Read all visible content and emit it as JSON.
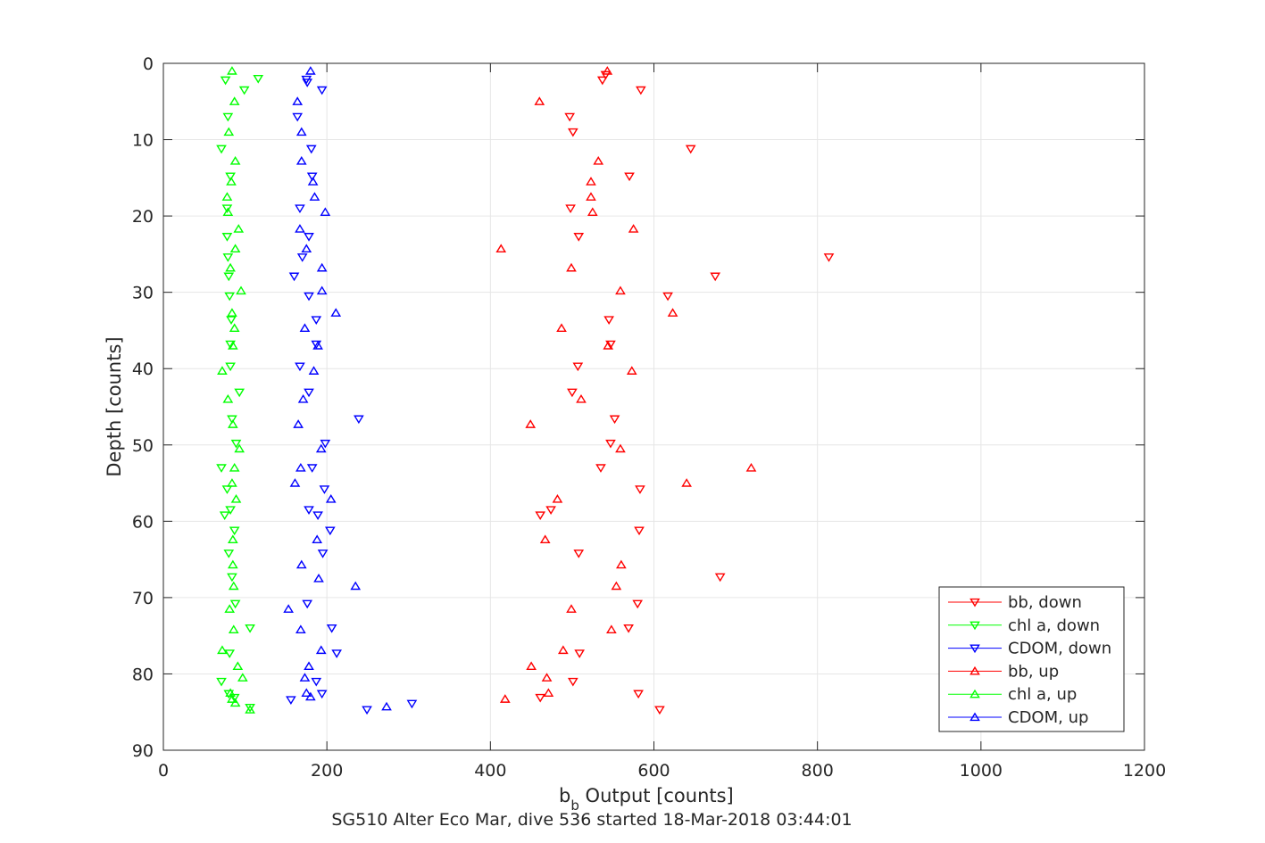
{
  "chart_data": {
    "type": "scatter",
    "title": "",
    "xlabel_main": "b",
    "xlabel_sub": "b",
    "xlabel_rest": " Output [counts]",
    "ylabel": "Depth [counts]",
    "caption": "SG510 Alter Eco Mar, dive 536 started 18-Mar-2018 03:44:01",
    "xlim": [
      0,
      1200
    ],
    "ylim": [
      0,
      90
    ],
    "y_reversed": true,
    "grid": true,
    "legend_position": "bottom-right",
    "xticks": [
      0,
      200,
      400,
      600,
      800,
      1000,
      1200
    ],
    "yticks": [
      0,
      10,
      20,
      30,
      40,
      50,
      60,
      70,
      80,
      90
    ],
    "series": [
      {
        "name": "bb, down",
        "color": "#ff0000",
        "marker": "triangle-down",
        "points": [
          [
            541,
            1.5
          ],
          [
            537,
            2.2
          ],
          [
            584,
            3.5
          ],
          [
            497,
            7.0
          ],
          [
            501,
            9.0
          ],
          [
            645,
            11.2
          ],
          [
            570,
            14.8
          ],
          [
            498,
            19.0
          ],
          [
            508,
            22.7
          ],
          [
            814,
            25.4
          ],
          [
            675,
            27.9
          ],
          [
            617,
            30.5
          ],
          [
            545,
            33.6
          ],
          [
            547,
            36.8
          ],
          [
            507,
            39.7
          ],
          [
            500,
            43.1
          ],
          [
            552,
            46.6
          ],
          [
            547,
            49.8
          ],
          [
            535,
            53.0
          ],
          [
            583,
            55.8
          ],
          [
            474,
            58.5
          ],
          [
            461,
            59.2
          ],
          [
            582,
            61.2
          ],
          [
            508,
            64.2
          ],
          [
            681,
            67.3
          ],
          [
            580,
            70.8
          ],
          [
            569,
            74.0
          ],
          [
            509,
            77.3
          ],
          [
            501,
            81.0
          ],
          [
            581,
            82.6
          ],
          [
            461,
            83.1
          ],
          [
            607,
            84.7
          ]
        ]
      },
      {
        "name": "chl a, down",
        "color": "#00ff00",
        "marker": "triangle-down",
        "points": [
          [
            116,
            2.0
          ],
          [
            76,
            2.2
          ],
          [
            99,
            3.5
          ],
          [
            79,
            7.0
          ],
          [
            71,
            11.2
          ],
          [
            82,
            14.8
          ],
          [
            78,
            19.0
          ],
          [
            78,
            22.7
          ],
          [
            79,
            25.4
          ],
          [
            80,
            27.9
          ],
          [
            81,
            30.5
          ],
          [
            83,
            33.6
          ],
          [
            82,
            36.8
          ],
          [
            82,
            39.7
          ],
          [
            93,
            43.1
          ],
          [
            84,
            46.6
          ],
          [
            89,
            49.8
          ],
          [
            71,
            53.0
          ],
          [
            78,
            55.8
          ],
          [
            82,
            58.5
          ],
          [
            75,
            59.2
          ],
          [
            87,
            61.2
          ],
          [
            80,
            64.2
          ],
          [
            84,
            67.3
          ],
          [
            88,
            70.8
          ],
          [
            106,
            74.0
          ],
          [
            81,
            77.3
          ],
          [
            71,
            81.0
          ],
          [
            80,
            82.6
          ],
          [
            87,
            83.1
          ],
          [
            106,
            84.4
          ]
        ]
      },
      {
        "name": "CDOM, down",
        "color": "#0000ff",
        "marker": "triangle-down",
        "points": [
          [
            175,
            2.1
          ],
          [
            176,
            2.5
          ],
          [
            194,
            3.5
          ],
          [
            164,
            7.0
          ],
          [
            181,
            11.2
          ],
          [
            182,
            14.8
          ],
          [
            167,
            19.0
          ],
          [
            178,
            22.7
          ],
          [
            170,
            25.4
          ],
          [
            160,
            27.9
          ],
          [
            178,
            30.5
          ],
          [
            187,
            33.6
          ],
          [
            187,
            36.8
          ],
          [
            167,
            39.7
          ],
          [
            178,
            43.1
          ],
          [
            239,
            46.6
          ],
          [
            198,
            49.8
          ],
          [
            182,
            53.0
          ],
          [
            197,
            55.8
          ],
          [
            178,
            58.5
          ],
          [
            189,
            59.2
          ],
          [
            204,
            61.2
          ],
          [
            195,
            64.2
          ],
          [
            176,
            70.8
          ],
          [
            206,
            74.0
          ],
          [
            212,
            77.3
          ],
          [
            187,
            81.0
          ],
          [
            194,
            82.6
          ],
          [
            156,
            83.4
          ],
          [
            304,
            83.9
          ],
          [
            249,
            84.7
          ]
        ]
      },
      {
        "name": "bb, up",
        "color": "#ff0000",
        "marker": "triangle-up",
        "points": [
          [
            543,
            1.0
          ],
          [
            460,
            5.0
          ],
          [
            532,
            12.8
          ],
          [
            523,
            15.5
          ],
          [
            523,
            17.5
          ],
          [
            525,
            19.5
          ],
          [
            575,
            21.7
          ],
          [
            413,
            24.3
          ],
          [
            499,
            26.8
          ],
          [
            559,
            29.8
          ],
          [
            623,
            32.7
          ],
          [
            487,
            34.7
          ],
          [
            544,
            37.0
          ],
          [
            573,
            40.3
          ],
          [
            511,
            44.0
          ],
          [
            449,
            47.3
          ],
          [
            559,
            50.5
          ],
          [
            719,
            53.0
          ],
          [
            640,
            55.0
          ],
          [
            482,
            57.1
          ],
          [
            467,
            62.4
          ],
          [
            560,
            65.7
          ],
          [
            554,
            68.5
          ],
          [
            499,
            71.5
          ],
          [
            548,
            74.2
          ],
          [
            489,
            76.9
          ],
          [
            450,
            79.0
          ],
          [
            469,
            80.5
          ],
          [
            471,
            82.5
          ],
          [
            418,
            83.3
          ]
        ]
      },
      {
        "name": "chl a, up",
        "color": "#00ff00",
        "marker": "triangle-up",
        "points": [
          [
            84,
            1.0
          ],
          [
            87,
            5.0
          ],
          [
            80,
            9.0
          ],
          [
            88,
            12.8
          ],
          [
            83,
            15.5
          ],
          [
            78,
            17.5
          ],
          [
            79,
            19.5
          ],
          [
            92,
            21.7
          ],
          [
            88,
            24.3
          ],
          [
            82,
            26.8
          ],
          [
            95,
            29.8
          ],
          [
            84,
            32.7
          ],
          [
            87,
            34.7
          ],
          [
            85,
            37.0
          ],
          [
            72,
            40.3
          ],
          [
            79,
            44.0
          ],
          [
            85,
            47.3
          ],
          [
            93,
            50.5
          ],
          [
            87,
            53.0
          ],
          [
            84,
            55.0
          ],
          [
            89,
            57.1
          ],
          [
            85,
            62.4
          ],
          [
            85,
            65.7
          ],
          [
            86,
            68.5
          ],
          [
            81,
            71.5
          ],
          [
            86,
            74.2
          ],
          [
            72,
            76.9
          ],
          [
            91,
            79.0
          ],
          [
            97,
            80.5
          ],
          [
            82,
            82.5
          ],
          [
            84,
            83.3
          ],
          [
            88,
            83.8
          ],
          [
            106,
            84.7
          ]
        ]
      },
      {
        "name": "CDOM, up",
        "color": "#0000ff",
        "marker": "triangle-up",
        "points": [
          [
            180,
            1.0
          ],
          [
            164,
            5.0
          ],
          [
            169,
            9.0
          ],
          [
            169,
            12.8
          ],
          [
            183,
            15.5
          ],
          [
            185,
            17.5
          ],
          [
            198,
            19.5
          ],
          [
            167,
            21.7
          ],
          [
            175,
            24.3
          ],
          [
            194,
            26.8
          ],
          [
            194,
            29.8
          ],
          [
            211,
            32.7
          ],
          [
            173,
            34.7
          ],
          [
            189,
            37.0
          ],
          [
            184,
            40.3
          ],
          [
            171,
            44.0
          ],
          [
            165,
            47.3
          ],
          [
            193,
            50.5
          ],
          [
            168,
            53.0
          ],
          [
            161,
            55.0
          ],
          [
            205,
            57.1
          ],
          [
            188,
            62.4
          ],
          [
            169,
            65.7
          ],
          [
            190,
            67.5
          ],
          [
            235,
            68.5
          ],
          [
            153,
            71.5
          ],
          [
            168,
            74.2
          ],
          [
            193,
            76.9
          ],
          [
            178,
            79.0
          ],
          [
            173,
            80.5
          ],
          [
            175,
            82.5
          ],
          [
            180,
            83.0
          ],
          [
            273,
            84.3
          ]
        ]
      }
    ]
  }
}
